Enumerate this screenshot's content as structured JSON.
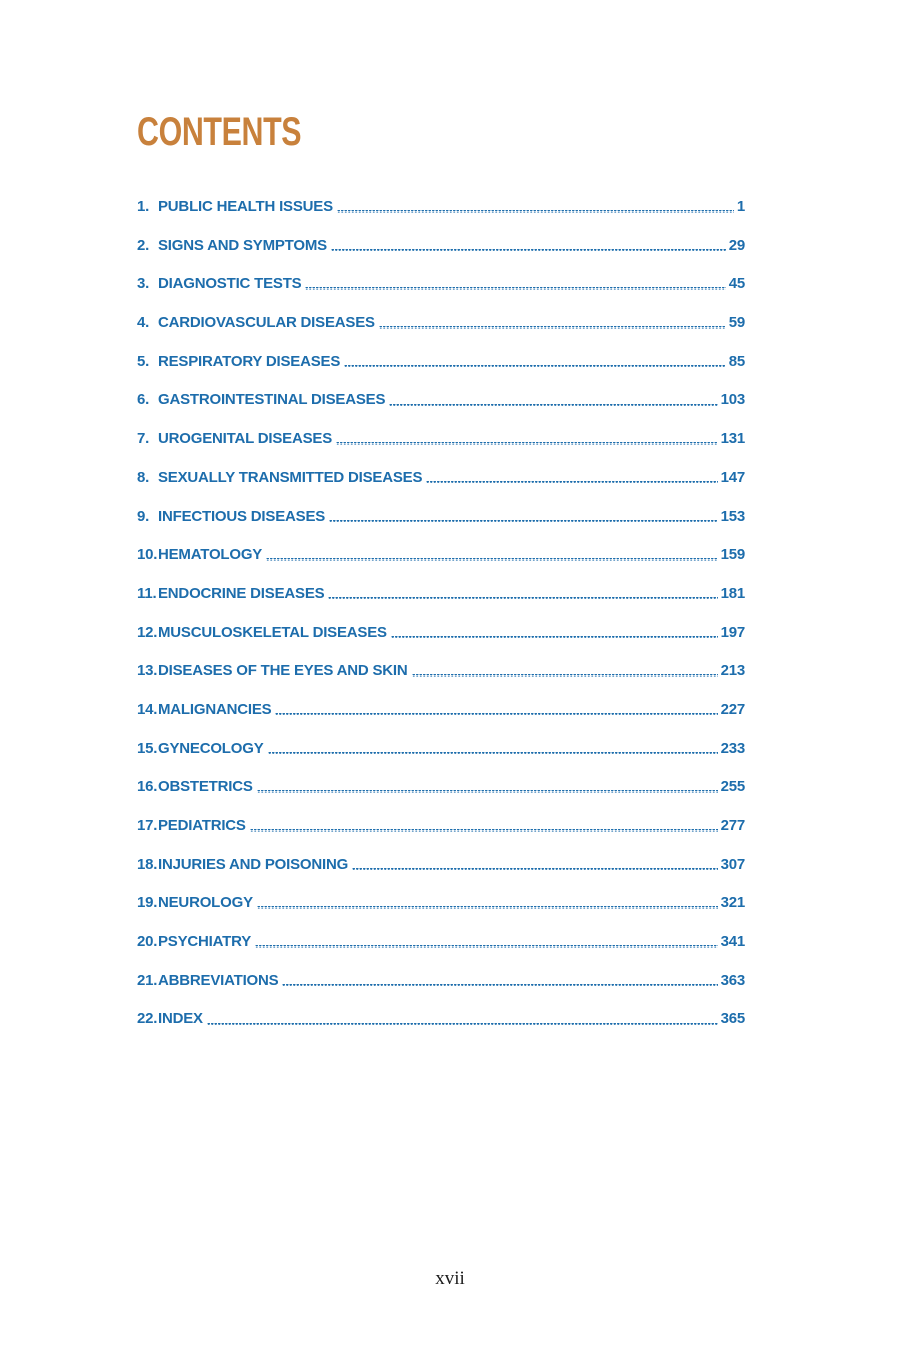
{
  "page": {
    "title": "CONTENTS",
    "footer_page_number": "xvii"
  },
  "colors": {
    "title_orange": "#c8813c",
    "toc_blue": "#1d6dac",
    "footer_black": "#1a1a1a",
    "background": "#ffffff"
  },
  "toc": {
    "items": [
      {
        "num": "1.",
        "label": "PUBLIC HEALTH ISSUES",
        "page": "1"
      },
      {
        "num": "2.",
        "label": "SIGNS AND SYMPTOMS",
        "page": "29"
      },
      {
        "num": "3.",
        "label": "DIAGNOSTIC TESTS",
        "page": "45"
      },
      {
        "num": "4.",
        "label": "CARDIOVASCULAR DISEASES",
        "page": "59"
      },
      {
        "num": "5.",
        "label": "RESPIRATORY DISEASES",
        "page": "85"
      },
      {
        "num": "6.",
        "label": "GASTROINTESTINAL DISEASES",
        "page": "103"
      },
      {
        "num": "7.",
        "label": "UROGENITAL DISEASES",
        "page": "131"
      },
      {
        "num": "8.",
        "label": "SEXUALLY TRANSMITTED DISEASES",
        "page": "147"
      },
      {
        "num": "9.",
        "label": "INFECTIOUS DISEASES",
        "page": "153"
      },
      {
        "num": "10.",
        "label": "HEMATOLOGY",
        "page": "159"
      },
      {
        "num": "11.",
        "label": "ENDOCRINE DISEASES",
        "page": "181"
      },
      {
        "num": "12.",
        "label": "MUSCULOSKELETAL DISEASES",
        "page": "197"
      },
      {
        "num": "13.",
        "label": "DISEASES OF THE EYES AND SKIN",
        "page": "213"
      },
      {
        "num": "14.",
        "label": "MALIGNANCIES",
        "page": "227"
      },
      {
        "num": "15.",
        "label": "GYNECOLOGY",
        "page": "233"
      },
      {
        "num": "16.",
        "label": "OBSTETRICS",
        "page": "255"
      },
      {
        "num": "17.",
        "label": "PEDIATRICS",
        "page": "277"
      },
      {
        "num": "18.",
        "label": "INJURIES AND POISONING",
        "page": "307"
      },
      {
        "num": "19.",
        "label": "NEUROLOGY",
        "page": "321"
      },
      {
        "num": "20.",
        "label": "PSYCHIATRY",
        "page": "341"
      },
      {
        "num": "21.",
        "label": "ABBREVIATIONS",
        "page": "363"
      },
      {
        "num": "22.",
        "label": "INDEX",
        "page": "365"
      }
    ]
  }
}
